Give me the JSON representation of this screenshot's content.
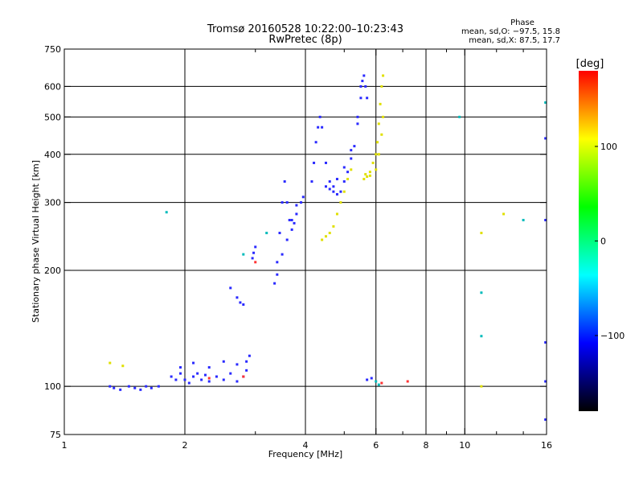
{
  "chart_data": {
    "type": "scatter",
    "title": "Tromsø 20160528 10:22:00–10:23:43",
    "subtitle": "RwPretec (8p)",
    "stats": {
      "heading": "Phase",
      "line_o": "mean, sd,O: −97.5, 15.8",
      "line_x": "mean, sd,X:  87.5, 17.7"
    },
    "xlabel": "Frequency [MHz]",
    "ylabel": "Stationary phase Virtual Height [km]",
    "x_scale": "log",
    "y_scale": "log",
    "xlim": [
      1,
      16
    ],
    "ylim": [
      75,
      750
    ],
    "x_ticks": [
      1,
      2,
      4,
      6,
      8,
      10,
      16
    ],
    "x_tick_labels": [
      "1",
      "2",
      "4",
      "6",
      "8",
      "10",
      "16"
    ],
    "x_minor_ticks": [
      3,
      5,
      7,
      9,
      12,
      14
    ],
    "y_ticks": [
      75,
      100,
      200,
      300,
      400,
      500,
      600,
      750
    ],
    "y_tick_labels": [
      "75",
      "100",
      "200",
      "300",
      "400",
      "500",
      "600",
      "750"
    ],
    "x_grid": [
      2,
      4,
      6,
      8,
      10
    ],
    "y_grid": [
      100,
      200,
      300,
      400,
      500,
      600
    ],
    "colorbar": {
      "unit_label": "[deg]",
      "range": [
        -180,
        180
      ],
      "tick_values": [
        100,
        0,
        -100
      ],
      "tick_labels": [
        "100",
        "0",
        "−100"
      ],
      "colors": [
        "#ff0000",
        "#ffff00",
        "#00ff00",
        "#00ffff",
        "#0000ff",
        "#000000"
      ]
    },
    "series": [
      {
        "type": "o-trace",
        "color": "#2a2aff",
        "points": [
          [
            1.3,
            100
          ],
          [
            1.33,
            99
          ],
          [
            1.38,
            98
          ],
          [
            1.45,
            100
          ],
          [
            1.5,
            99
          ],
          [
            1.55,
            98
          ],
          [
            1.6,
            100
          ],
          [
            1.65,
            99
          ],
          [
            1.72,
            100
          ],
          [
            1.85,
            106
          ],
          [
            1.9,
            104
          ],
          [
            1.95,
            108
          ],
          [
            2.0,
            104
          ],
          [
            2.05,
            102
          ],
          [
            2.1,
            106
          ],
          [
            2.15,
            108
          ],
          [
            2.2,
            104
          ],
          [
            2.25,
            107
          ],
          [
            2.3,
            103
          ],
          [
            2.4,
            106
          ],
          [
            2.5,
            104
          ],
          [
            2.6,
            108
          ],
          [
            2.7,
            103
          ],
          [
            2.8,
            106
          ],
          [
            2.85,
            110
          ],
          [
            1.95,
            112
          ],
          [
            2.1,
            115
          ],
          [
            2.3,
            112
          ],
          [
            2.5,
            116
          ],
          [
            2.7,
            114
          ],
          [
            2.85,
            116
          ],
          [
            2.9,
            120
          ],
          [
            2.6,
            180
          ],
          [
            2.7,
            170
          ],
          [
            2.75,
            165
          ],
          [
            2.8,
            163
          ],
          [
            2.95,
            215
          ],
          [
            2.97,
            222
          ],
          [
            3.0,
            230
          ],
          [
            3.35,
            185
          ],
          [
            3.4,
            210
          ],
          [
            3.45,
            250
          ],
          [
            3.5,
            300
          ],
          [
            3.55,
            340
          ],
          [
            3.6,
            300
          ],
          [
            3.65,
            270
          ],
          [
            3.7,
            255
          ],
          [
            3.75,
            265
          ],
          [
            3.8,
            280
          ],
          [
            3.9,
            300
          ],
          [
            3.95,
            310
          ],
          [
            3.4,
            195
          ],
          [
            3.5,
            220
          ],
          [
            3.6,
            240
          ],
          [
            3.7,
            270
          ],
          [
            3.8,
            295
          ],
          [
            4.15,
            340
          ],
          [
            4.2,
            380
          ],
          [
            4.25,
            430
          ],
          [
            4.3,
            470
          ],
          [
            4.35,
            500
          ],
          [
            4.4,
            470
          ],
          [
            4.5,
            380
          ],
          [
            4.6,
            340
          ],
          [
            4.7,
            320
          ],
          [
            4.8,
            315
          ],
          [
            4.9,
            320
          ],
          [
            5.0,
            340
          ],
          [
            5.1,
            360
          ],
          [
            5.2,
            390
          ],
          [
            5.3,
            420
          ],
          [
            5.4,
            480
          ],
          [
            5.5,
            560
          ],
          [
            5.55,
            620
          ],
          [
            5.6,
            640
          ],
          [
            5.65,
            600
          ],
          [
            5.7,
            560
          ],
          [
            4.5,
            330
          ],
          [
            4.6,
            325
          ],
          [
            4.7,
            330
          ],
          [
            4.8,
            345
          ],
          [
            5.0,
            370
          ],
          [
            5.2,
            410
          ],
          [
            5.4,
            500
          ],
          [
            5.5,
            600
          ],
          [
            5.7,
            104
          ],
          [
            5.85,
            105
          ],
          [
            15.9,
            440
          ],
          [
            15.9,
            103
          ],
          [
            15.9,
            130
          ],
          [
            15.9,
            270
          ],
          [
            15.9,
            82
          ]
        ]
      },
      {
        "type": "x-trace",
        "color": "#e0e000",
        "points": [
          [
            1.3,
            115
          ],
          [
            1.4,
            113
          ],
          [
            4.4,
            240
          ],
          [
            4.5,
            245
          ],
          [
            4.6,
            250
          ],
          [
            4.7,
            260
          ],
          [
            4.8,
            280
          ],
          [
            4.9,
            300
          ],
          [
            5.0,
            320
          ],
          [
            5.1,
            345
          ],
          [
            5.2,
            365
          ],
          [
            5.6,
            345
          ],
          [
            5.7,
            350
          ],
          [
            5.8,
            360
          ],
          [
            5.9,
            380
          ],
          [
            6.0,
            400
          ],
          [
            6.05,
            430
          ],
          [
            6.1,
            480
          ],
          [
            6.15,
            540
          ],
          [
            6.2,
            600
          ],
          [
            6.25,
            640
          ],
          [
            5.65,
            355
          ],
          [
            5.8,
            352
          ],
          [
            6.0,
            365
          ],
          [
            6.1,
            400
          ],
          [
            6.2,
            450
          ],
          [
            6.25,
            500
          ],
          [
            11,
            100
          ],
          [
            11,
            250
          ],
          [
            12.5,
            280
          ]
        ]
      },
      {
        "type": "scattered",
        "color": "#00bbbb",
        "points": [
          [
            1.8,
            283
          ],
          [
            2.8,
            220
          ],
          [
            3.2,
            250
          ],
          [
            6.0,
            103
          ],
          [
            6.1,
            101
          ],
          [
            9.7,
            500
          ],
          [
            11,
            175
          ],
          [
            11,
            135
          ],
          [
            14,
            270
          ],
          [
            15.9,
            545
          ]
        ]
      },
      {
        "type": "scattered",
        "color": "#ff3333",
        "points": [
          [
            2.3,
            105
          ],
          [
            2.8,
            106
          ],
          [
            3.0,
            210
          ],
          [
            6.2,
            102
          ],
          [
            7.2,
            103
          ]
        ]
      }
    ]
  }
}
